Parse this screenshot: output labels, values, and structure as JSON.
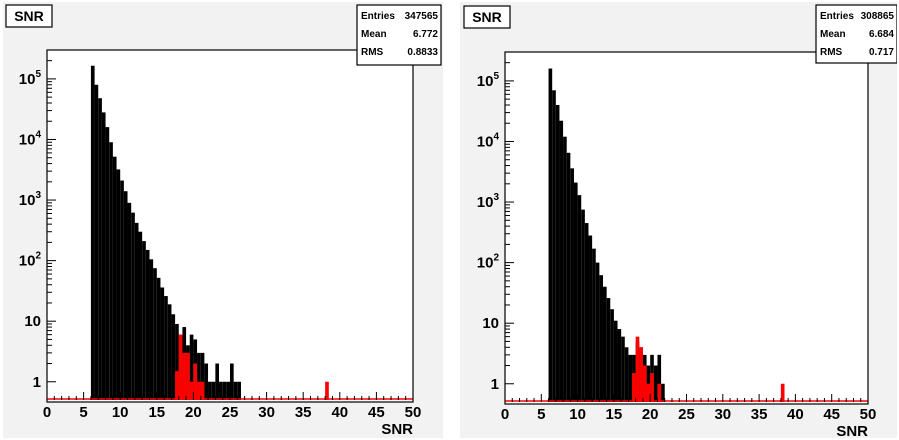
{
  "chart_data": [
    {
      "type": "bar",
      "title": "SNR",
      "xlabel": "SNR",
      "ylabel": "",
      "xlim": [
        0,
        50
      ],
      "ylim": [
        0.5,
        300000
      ],
      "ylog": true,
      "grid": false,
      "legend": "none",
      "stats": {
        "entries_label": "Entries",
        "entries": "347565",
        "mean_label": "Mean",
        "mean": "6.772",
        "rms_label": "RMS",
        "rms": "0.8833"
      },
      "x_ticks": [
        "0",
        "5",
        "10",
        "15",
        "20",
        "25",
        "30",
        "35",
        "40",
        "45",
        "50"
      ],
      "y_ticks": [
        {
          "label": "1",
          "exp": "",
          "value": 1
        },
        {
          "label": "10",
          "exp": "",
          "value": 10
        },
        {
          "label": "10",
          "exp": "2",
          "value": 100
        },
        {
          "label": "10",
          "exp": "3",
          "value": 1000
        },
        {
          "label": "10",
          "exp": "4",
          "value": 10000
        },
        {
          "label": "10",
          "exp": "5",
          "value": 100000
        }
      ],
      "bin_width": 0.5,
      "series": [
        {
          "color": "#000000",
          "bins": [
            [
              6,
              165000
            ],
            [
              6.5,
              80000
            ],
            [
              7,
              48000
            ],
            [
              7.5,
              28000
            ],
            [
              8,
              16000
            ],
            [
              8.5,
              9000
            ],
            [
              9,
              5200
            ],
            [
              9.5,
              3200
            ],
            [
              10,
              2100
            ],
            [
              10.5,
              1400
            ],
            [
              11,
              900
            ],
            [
              11.5,
              620
            ],
            [
              12,
              420
            ],
            [
              12.5,
              300
            ],
            [
              13,
              210
            ],
            [
              13.5,
              150
            ],
            [
              14,
              105
            ],
            [
              14.5,
              75
            ],
            [
              15,
              52
            ],
            [
              15.5,
              36
            ],
            [
              16,
              26
            ],
            [
              16.5,
              19
            ],
            [
              17,
              13
            ],
            [
              17.5,
              9
            ],
            [
              18,
              6
            ],
            [
              18.5,
              8
            ],
            [
              19,
              4
            ],
            [
              19.5,
              6
            ],
            [
              20,
              5
            ],
            [
              20.5,
              3
            ],
            [
              21,
              3
            ],
            [
              21.5,
              2
            ],
            [
              22,
              1
            ],
            [
              22.5,
              1
            ],
            [
              23,
              2
            ],
            [
              23.5,
              1
            ],
            [
              24,
              1
            ],
            [
              24.5,
              1
            ],
            [
              25,
              2
            ],
            [
              25.5,
              1
            ],
            [
              26,
              1
            ]
          ]
        },
        {
          "color": "#ff0000",
          "bins": [
            [
              17.5,
              1.5
            ],
            [
              18,
              6
            ],
            [
              18.5,
              3
            ],
            [
              19,
              3
            ],
            [
              19.5,
              1
            ],
            [
              20,
              2
            ],
            [
              20.5,
              1
            ],
            [
              21,
              1
            ],
            [
              38,
              1
            ]
          ]
        }
      ]
    },
    {
      "type": "bar",
      "title": "SNR",
      "xlabel": "SNR",
      "ylabel": "",
      "xlim": [
        0,
        50
      ],
      "ylim": [
        0.5,
        300000
      ],
      "ylog": true,
      "grid": false,
      "legend": "none",
      "stats": {
        "entries_label": "Entries",
        "entries": "308865",
        "mean_label": "Mean",
        "mean": "6.684",
        "rms_label": "RMS",
        "rms": "0.717"
      },
      "x_ticks": [
        "0",
        "5",
        "10",
        "15",
        "20",
        "25",
        "30",
        "35",
        "40",
        "45",
        "50"
      ],
      "y_ticks": [
        {
          "label": "1",
          "exp": "",
          "value": 1
        },
        {
          "label": "10",
          "exp": "",
          "value": 10
        },
        {
          "label": "10",
          "exp": "2",
          "value": 100
        },
        {
          "label": "10",
          "exp": "3",
          "value": 1000
        },
        {
          "label": "10",
          "exp": "4",
          "value": 10000
        },
        {
          "label": "10",
          "exp": "5",
          "value": 100000
        }
      ],
      "bin_width": 0.5,
      "series": [
        {
          "color": "#000000",
          "bins": [
            [
              6,
              160000
            ],
            [
              6.5,
              70000
            ],
            [
              7,
              40000
            ],
            [
              7.5,
              22000
            ],
            [
              8,
              12000
            ],
            [
              8.5,
              6500
            ],
            [
              9,
              3600
            ],
            [
              9.5,
              2100
            ],
            [
              10,
              1300
            ],
            [
              10.5,
              750
            ],
            [
              11,
              450
            ],
            [
              11.5,
              280
            ],
            [
              12,
              170
            ],
            [
              12.5,
              100
            ],
            [
              13,
              62
            ],
            [
              13.5,
              40
            ],
            [
              14,
              26
            ],
            [
              14.5,
              17
            ],
            [
              15,
              11
            ],
            [
              15.5,
              8
            ],
            [
              16,
              6
            ],
            [
              16.5,
              4
            ],
            [
              17,
              3
            ],
            [
              17.5,
              3
            ],
            [
              18,
              5
            ],
            [
              18.5,
              4
            ],
            [
              19,
              3
            ],
            [
              19.5,
              2
            ],
            [
              20,
              3
            ],
            [
              20.5,
              2
            ],
            [
              21,
              3
            ],
            [
              21.5,
              1
            ]
          ]
        },
        {
          "color": "#ff0000",
          "bins": [
            [
              17.5,
              1.5
            ],
            [
              18,
              6
            ],
            [
              18.5,
              4
            ],
            [
              19,
              2
            ],
            [
              19.5,
              1
            ],
            [
              20,
              1.5
            ],
            [
              21,
              1
            ],
            [
              38,
              1
            ]
          ]
        }
      ]
    }
  ]
}
